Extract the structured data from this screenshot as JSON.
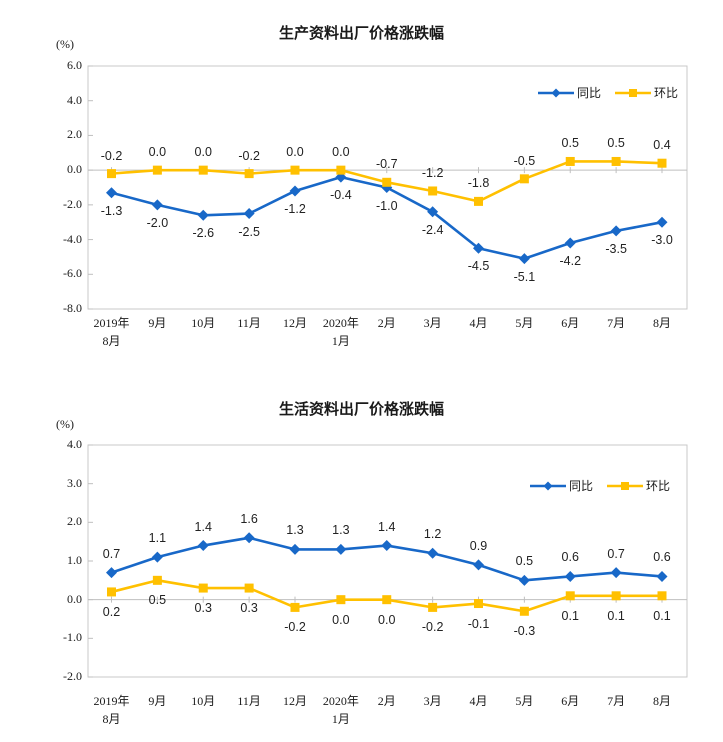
{
  "chart_data": [
    {
      "type": "line",
      "title": "生产资料出厂价格涨跌幅",
      "unit_label": "(%)",
      "categories": [
        "2019年\n8月",
        "9月",
        "10月",
        "11月",
        "12月",
        "2020年\n1月",
        "2月",
        "3月",
        "4月",
        "5月",
        "6月",
        "7月",
        "8月"
      ],
      "series": [
        {
          "name": "同比",
          "color": "#1868C8",
          "marker": "diamond",
          "label_position": "below",
          "values": [
            -1.3,
            -2.0,
            -2.6,
            -2.5,
            -1.2,
            -0.4,
            -1.0,
            -2.4,
            -4.5,
            -5.1,
            -4.2,
            -3.5,
            -3.0
          ],
          "labels": [
            "-1.3",
            "-2.0",
            "-2.6",
            "-2.5",
            "-1.2",
            "-0.4",
            "-1.0",
            "-2.4",
            "-4.5",
            "-5.1",
            "-4.2",
            "-3.5",
            "-3.0"
          ]
        },
        {
          "name": "环比",
          "color": "#FFC000",
          "marker": "square",
          "label_position": "above",
          "values": [
            -0.2,
            0.0,
            0.0,
            -0.2,
            0.0,
            0.0,
            -0.7,
            -1.2,
            -1.8,
            -0.5,
            0.5,
            0.5,
            0.4
          ],
          "labels": [
            "-0.2",
            "0.0",
            "0.0",
            "-0.2",
            "0.0",
            "0.0",
            "-0.7",
            "-1.2",
            "-1.8",
            "-0.5",
            "0.5",
            "0.5",
            "0.4"
          ]
        }
      ],
      "ylim": [
        -8,
        6
      ],
      "ytick_step": 2,
      "y_ticks": [
        "6.0",
        "4.0",
        "2.0",
        "0.0",
        "-2.0",
        "-4.0",
        "-6.0",
        "-8.0"
      ],
      "grid": "zero-line-only",
      "legend_position": "top-right"
    },
    {
      "type": "line",
      "title": "生活资料出厂价格涨跌幅",
      "unit_label": "(%)",
      "categories": [
        "2019年\n8月",
        "9月",
        "10月",
        "11月",
        "12月",
        "2020年\n1月",
        "2月",
        "3月",
        "4月",
        "5月",
        "6月",
        "7月",
        "8月"
      ],
      "series": [
        {
          "name": "同比",
          "color": "#1868C8",
          "marker": "diamond",
          "label_position": "above",
          "values": [
            0.7,
            1.1,
            1.4,
            1.6,
            1.3,
            1.3,
            1.4,
            1.2,
            0.9,
            0.5,
            0.6,
            0.7,
            0.6
          ],
          "labels": [
            "0.7",
            "1.1",
            "1.4",
            "1.6",
            "1.3",
            "1.3",
            "1.4",
            "1.2",
            "0.9",
            "0.5",
            "0.6",
            "0.7",
            "0.6"
          ]
        },
        {
          "name": "环比",
          "color": "#FFC000",
          "marker": "square",
          "label_position": "below",
          "values": [
            0.2,
            0.5,
            0.3,
            0.3,
            -0.2,
            0.0,
            0.0,
            -0.2,
            -0.1,
            -0.3,
            0.1,
            0.1,
            0.1
          ],
          "labels": [
            "0.2",
            "0.5",
            "0.3",
            "0.3",
            "-0.2",
            "0.0",
            "0.0",
            "-0.2",
            "-0.1",
            "-0.3",
            "0.1",
            "0.1",
            "0.1"
          ]
        }
      ],
      "ylim": [
        -2,
        4
      ],
      "ytick_step": 1,
      "y_ticks": [
        "4.0",
        "3.0",
        "2.0",
        "1.0",
        "0.0",
        "-1.0",
        "-2.0"
      ],
      "grid": "zero-line-only",
      "legend_position": "top-right"
    }
  ],
  "colors": {
    "series_yoy": "#1868C8",
    "series_mom": "#FFC000",
    "plot_border": "#C9C9C9",
    "zero_line": "#BFBFBF",
    "text": "#1a1a1a"
  }
}
